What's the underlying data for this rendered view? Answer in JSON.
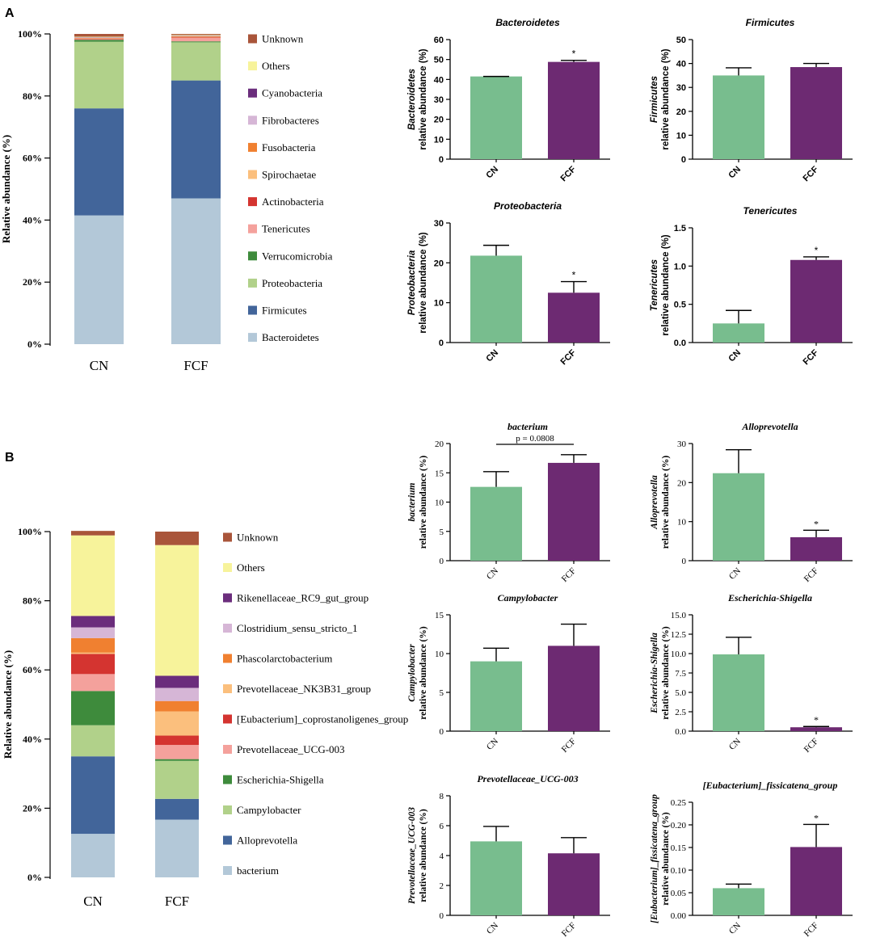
{
  "panels": [
    {
      "label": "A"
    },
    {
      "label": "B"
    }
  ],
  "chart_data": [
    {
      "type": "bar",
      "subtype": "stacked-percent",
      "panel": "A",
      "title": "",
      "ylabel": "Relative abundance (%)",
      "ylim": [
        0,
        100
      ],
      "yticks": [
        "0%",
        "20%",
        "40%",
        "60%",
        "80%",
        "100%"
      ],
      "categories": [
        "CN",
        "FCF"
      ],
      "series": [
        {
          "name": "Bacteroidetes",
          "color": "#b3c8d8",
          "values": [
            41.5,
            47
          ]
        },
        {
          "name": "Firmicutes",
          "color": "#42659a",
          "values": [
            34.5,
            38
          ]
        },
        {
          "name": "Proteobacteria",
          "color": "#b1d18a",
          "values": [
            21.5,
            12.3
          ]
        },
        {
          "name": "Verrucomicrobia",
          "color": "#3e8b3c",
          "values": [
            0.6,
            0.3
          ]
        },
        {
          "name": "Tenericutes",
          "color": "#f4a19c",
          "values": [
            0.2,
            1.1
          ]
        },
        {
          "name": "Actinobacteria",
          "color": "#d43430",
          "values": [
            0.2,
            0.2
          ]
        },
        {
          "name": "Spirochaetae",
          "color": "#fbbf7d",
          "values": [
            0.1,
            0.2
          ]
        },
        {
          "name": "Fusobacteria",
          "color": "#f08030",
          "values": [
            0.1,
            0.2
          ]
        },
        {
          "name": "Fibrobacteres",
          "color": "#d6b6d6",
          "values": [
            0.1,
            0.1
          ]
        },
        {
          "name": "Cyanobacteria",
          "color": "#6b2d7c",
          "values": [
            0.1,
            0.1
          ]
        },
        {
          "name": "Others",
          "color": "#f7f39b",
          "values": [
            0.2,
            0.2
          ]
        },
        {
          "name": "Unknown",
          "color": "#a9553a",
          "values": [
            0.9,
            0.3
          ]
        }
      ]
    },
    {
      "type": "bar",
      "panel": "A",
      "title": "Bacteroidetes",
      "ylabel": [
        "Bacteroidetes",
        "relative abundance (%)"
      ],
      "ylim": [
        0,
        60
      ],
      "yticks": [
        0,
        10,
        20,
        30,
        40,
        50,
        60
      ],
      "categories": [
        "CN",
        "FCF"
      ],
      "values": [
        41.5,
        48.8
      ],
      "errors": [
        0,
        0.8
      ],
      "significance": "*"
    },
    {
      "type": "bar",
      "panel": "A",
      "title": "Firmicutes",
      "ylabel": [
        "Firmicutes",
        "relative abundance (%)"
      ],
      "ylim": [
        0,
        50
      ],
      "yticks": [
        0,
        10,
        20,
        30,
        40,
        50
      ],
      "categories": [
        "CN",
        "FCF"
      ],
      "values": [
        35.0,
        38.5
      ],
      "errors": [
        3.2,
        1.5
      ],
      "significance": ""
    },
    {
      "type": "bar",
      "panel": "A",
      "title": "Proteobacteria",
      "ylabel": [
        "Proteobacteria",
        "relative abundance (%)"
      ],
      "ylim": [
        0,
        30
      ],
      "yticks": [
        0,
        10,
        20,
        30
      ],
      "categories": [
        "CN",
        "FCF"
      ],
      "values": [
        21.8,
        12.5
      ],
      "errors": [
        2.6,
        2.8
      ],
      "significance": "*"
    },
    {
      "type": "bar",
      "panel": "A",
      "title": "Tenericutes",
      "ylabel": [
        "Tenericutes",
        "relative abundance (%)"
      ],
      "ylim": [
        0,
        1.5
      ],
      "yticks": [
        "0.0",
        "0.5",
        "1.0",
        "1.5"
      ],
      "categories": [
        "CN",
        "FCF"
      ],
      "values": [
        0.25,
        1.08
      ],
      "errors": [
        0.17,
        0.04
      ],
      "significance": "*"
    },
    {
      "type": "bar",
      "subtype": "stacked-percent",
      "panel": "B",
      "title": "",
      "ylabel": "Relative abundance (%)",
      "ylim": [
        0,
        100
      ],
      "yticks": [
        "0%",
        "20%",
        "40%",
        "60%",
        "80%",
        "100%"
      ],
      "categories": [
        "CN",
        "FCF"
      ],
      "series": [
        {
          "name": "bacterium",
          "color": "#b3c8d8",
          "values": [
            12.6,
            16.7
          ]
        },
        {
          "name": "Alloprevotella",
          "color": "#42659a",
          "values": [
            22.4,
            6.0
          ]
        },
        {
          "name": "Campylobacter",
          "color": "#b1d18a",
          "values": [
            9.0,
            11.0
          ]
        },
        {
          "name": "Escherichia-Shigella",
          "color": "#3e8b3c",
          "values": [
            9.9,
            0.5
          ]
        },
        {
          "name": "Prevotellaceae_UCG-003",
          "color": "#f4a19c",
          "values": [
            4.9,
            4.1
          ]
        },
        {
          "name": "[Eubacterium]_coprostanoligenes_group",
          "color": "#d43430",
          "values": [
            5.8,
            2.7
          ]
        },
        {
          "name": "Prevotellaceae_NK3B31_group",
          "color": "#fbbf7d",
          "values": [
            0.4,
            7.0
          ]
        },
        {
          "name": "Phascolarctobacterium",
          "color": "#f08030",
          "values": [
            4.2,
            3.0
          ]
        },
        {
          "name": "Clostridium_sensu_stricto_1",
          "color": "#d6b6d6",
          "values": [
            3.1,
            3.8
          ]
        },
        {
          "name": "Rikenellaceae_RC9_gut_group",
          "color": "#6b2d7c",
          "values": [
            3.3,
            3.5
          ]
        },
        {
          "name": "Others",
          "color": "#f7f39b",
          "values": [
            23.3,
            37.8
          ]
        },
        {
          "name": "Unknown",
          "color": "#a9553a",
          "values": [
            1.3,
            3.9
          ]
        }
      ]
    },
    {
      "type": "bar",
      "panel": "B",
      "title": "bacterium",
      "ylabel": [
        "bacterium",
        "relative abundance (%)"
      ],
      "ylim": [
        0,
        20
      ],
      "yticks": [
        0,
        5,
        10,
        15,
        20
      ],
      "categories": [
        "CN",
        "FCF"
      ],
      "values": [
        12.6,
        16.7
      ],
      "errors": [
        2.6,
        1.4
      ],
      "significance": "",
      "annotation": "p = 0.0808"
    },
    {
      "type": "bar",
      "panel": "B",
      "title": "Alloprevotella",
      "ylabel": [
        "Alloprevotella",
        "relative abundance (%)"
      ],
      "ylim": [
        0,
        30
      ],
      "yticks": [
        0,
        10,
        20,
        30
      ],
      "categories": [
        "CN",
        "FCF"
      ],
      "values": [
        22.4,
        6.0
      ],
      "errors": [
        6.0,
        1.8
      ],
      "significance": "*"
    },
    {
      "type": "bar",
      "panel": "B",
      "title": "Campylobacter",
      "ylabel": [
        "Campylobacter",
        "relative abundance (%)"
      ],
      "ylim": [
        0,
        15
      ],
      "yticks": [
        0,
        5,
        10,
        15
      ],
      "categories": [
        "CN",
        "FCF"
      ],
      "values": [
        9.0,
        11.0
      ],
      "errors": [
        1.7,
        2.8
      ],
      "significance": ""
    },
    {
      "type": "bar",
      "panel": "B",
      "title": "Escherichia-Shigella",
      "ylabel": [
        "Escherichia-Shigella",
        "relative abundance (%)"
      ],
      "ylim": [
        0,
        15
      ],
      "yticks": [
        "0.0",
        "2.5",
        "5.0",
        "7.5",
        "10.0",
        "12.5",
        "15.0"
      ],
      "categories": [
        "CN",
        "FCF"
      ],
      "values": [
        9.9,
        0.5
      ],
      "errors": [
        2.2,
        0.1
      ],
      "significance": "*"
    },
    {
      "type": "bar",
      "panel": "B",
      "title": "Prevotellaceae_UCG-003",
      "ylabel": [
        "Prevotellaceae_UCG-003",
        "relative abundance (%)"
      ],
      "ylim": [
        0,
        8
      ],
      "yticks": [
        0,
        2,
        4,
        6,
        8
      ],
      "categories": [
        "CN",
        "FCF"
      ],
      "values": [
        4.95,
        4.15
      ],
      "errors": [
        1.0,
        1.05
      ],
      "significance": ""
    },
    {
      "type": "bar",
      "panel": "B",
      "title": "[Eubacterium]_fissicatena_group",
      "ylabel": [
        "[Eubacterium]_fissicatena_group",
        "relative abundance (%)"
      ],
      "ylim": [
        0,
        0.25
      ],
      "yticks": [
        "0.00",
        "0.05",
        "0.10",
        "0.15",
        "0.20",
        "0.25"
      ],
      "categories": [
        "CN",
        "FCF"
      ],
      "values": [
        0.06,
        0.151
      ],
      "errors": [
        0.009,
        0.05
      ],
      "significance": "*"
    }
  ]
}
